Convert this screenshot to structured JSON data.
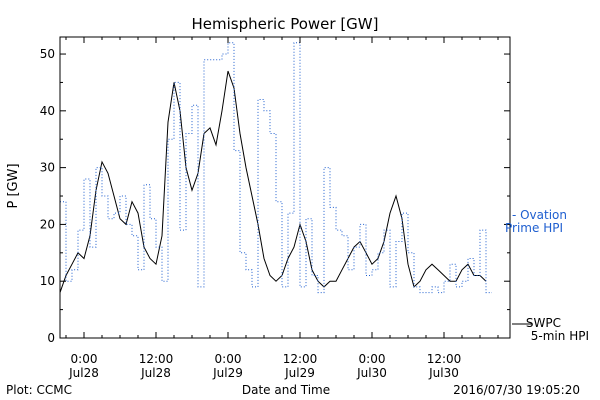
{
  "chart_data": {
    "type": "line",
    "title": "Hemispheric Power [GW]",
    "xlabel": "Date and Time",
    "ylabel": "P [GW]",
    "ylim": [
      0,
      53
    ],
    "xlim": [
      "2016-07-27T20:00",
      "2016-07-30T23:00"
    ],
    "y_ticks": [
      0,
      10,
      20,
      30,
      40,
      50
    ],
    "x_ticks": [
      {
        "top": "0:00",
        "bottom": "Jul28",
        "t": "2016-07-28T00:00"
      },
      {
        "top": "12:00",
        "bottom": "Jul28",
        "t": "2016-07-28T12:00"
      },
      {
        "top": "0:00",
        "bottom": "Jul29",
        "t": "2016-07-29T00:00"
      },
      {
        "top": "12:00",
        "bottom": "Jul29",
        "t": "2016-07-29T12:00"
      },
      {
        "top": "0:00",
        "bottom": "Jul30",
        "t": "2016-07-30T00:00"
      },
      {
        "top": "12:00",
        "bottom": "Jul30",
        "t": "2016-07-30T12:00"
      }
    ],
    "grid": false,
    "series": [
      {
        "name": "SWPC 5-min HPI",
        "legend_label_1": "SWPC",
        "legend_label_2": "5-min HPI",
        "style": "solid",
        "color": "#000000",
        "x": [
          "2016-07-27T20:00",
          "2016-07-27T21:00",
          "2016-07-27T22:00",
          "2016-07-27T23:00",
          "2016-07-28T00:00",
          "2016-07-28T01:00",
          "2016-07-28T02:00",
          "2016-07-28T03:00",
          "2016-07-28T04:00",
          "2016-07-28T05:00",
          "2016-07-28T06:00",
          "2016-07-28T07:00",
          "2016-07-28T08:00",
          "2016-07-28T09:00",
          "2016-07-28T10:00",
          "2016-07-28T11:00",
          "2016-07-28T12:00",
          "2016-07-28T13:00",
          "2016-07-28T14:00",
          "2016-07-28T15:00",
          "2016-07-28T16:00",
          "2016-07-28T17:00",
          "2016-07-28T18:00",
          "2016-07-28T19:00",
          "2016-07-28T20:00",
          "2016-07-28T21:00",
          "2016-07-28T22:00",
          "2016-07-28T23:00",
          "2016-07-29T00:00",
          "2016-07-29T01:00",
          "2016-07-29T02:00",
          "2016-07-29T03:00",
          "2016-07-29T04:00",
          "2016-07-29T05:00",
          "2016-07-29T06:00",
          "2016-07-29T07:00",
          "2016-07-29T08:00",
          "2016-07-29T09:00",
          "2016-07-29T10:00",
          "2016-07-29T11:00",
          "2016-07-29T12:00",
          "2016-07-29T13:00",
          "2016-07-29T14:00",
          "2016-07-29T15:00",
          "2016-07-29T16:00",
          "2016-07-29T17:00",
          "2016-07-29T18:00",
          "2016-07-29T19:00",
          "2016-07-29T20:00",
          "2016-07-29T21:00",
          "2016-07-29T22:00",
          "2016-07-29T23:00",
          "2016-07-30T00:00",
          "2016-07-30T01:00",
          "2016-07-30T02:00",
          "2016-07-30T03:00",
          "2016-07-30T04:00",
          "2016-07-30T05:00",
          "2016-07-30T06:00",
          "2016-07-30T07:00",
          "2016-07-30T08:00",
          "2016-07-30T09:00",
          "2016-07-30T10:00",
          "2016-07-30T11:00",
          "2016-07-30T12:00",
          "2016-07-30T13:00",
          "2016-07-30T14:00",
          "2016-07-30T15:00",
          "2016-07-30T16:00",
          "2016-07-30T17:00",
          "2016-07-30T18:00",
          "2016-07-30T19:00"
        ],
        "values": [
          8,
          11,
          13,
          15,
          14,
          18,
          26,
          31,
          29,
          25,
          21,
          20,
          24,
          22,
          16,
          14,
          13,
          18,
          38,
          45,
          40,
          30,
          26,
          29,
          36,
          37,
          34,
          40,
          47,
          44,
          36,
          30,
          25,
          20,
          14,
          11,
          10,
          11,
          14,
          16,
          20,
          17,
          12,
          10,
          9,
          10,
          10,
          12,
          14,
          16,
          17,
          15,
          13,
          14,
          17,
          22,
          25,
          21,
          13,
          9,
          10,
          12,
          13,
          12,
          11,
          10,
          10,
          12,
          13,
          11,
          11,
          10
        ]
      },
      {
        "name": "Ovation Prime HPI",
        "legend_label_1": "- Ovation",
        "legend_label_2": "Prime HPI",
        "style": "dotted",
        "color": "#1f5fd0",
        "x": [
          "2016-07-27T20:00",
          "2016-07-27T21:00",
          "2016-07-27T22:00",
          "2016-07-27T23:00",
          "2016-07-28T00:00",
          "2016-07-28T01:00",
          "2016-07-28T02:00",
          "2016-07-28T03:00",
          "2016-07-28T04:00",
          "2016-07-28T05:00",
          "2016-07-28T06:00",
          "2016-07-28T07:00",
          "2016-07-28T08:00",
          "2016-07-28T09:00",
          "2016-07-28T10:00",
          "2016-07-28T11:00",
          "2016-07-28T12:00",
          "2016-07-28T13:00",
          "2016-07-28T14:00",
          "2016-07-28T15:00",
          "2016-07-28T16:00",
          "2016-07-28T17:00",
          "2016-07-28T18:00",
          "2016-07-28T19:00",
          "2016-07-28T20:00",
          "2016-07-28T21:00",
          "2016-07-28T22:00",
          "2016-07-28T23:00",
          "2016-07-29T00:00",
          "2016-07-29T01:00",
          "2016-07-29T02:00",
          "2016-07-29T03:00",
          "2016-07-29T04:00",
          "2016-07-29T05:00",
          "2016-07-29T06:00",
          "2016-07-29T07:00",
          "2016-07-29T08:00",
          "2016-07-29T09:00",
          "2016-07-29T10:00",
          "2016-07-29T11:00",
          "2016-07-29T12:00",
          "2016-07-29T13:00",
          "2016-07-29T14:00",
          "2016-07-29T15:00",
          "2016-07-29T16:00",
          "2016-07-29T17:00",
          "2016-07-29T18:00",
          "2016-07-29T19:00",
          "2016-07-29T20:00",
          "2016-07-29T21:00",
          "2016-07-29T22:00",
          "2016-07-29T23:00",
          "2016-07-30T00:00",
          "2016-07-30T01:00",
          "2016-07-30T02:00",
          "2016-07-30T03:00",
          "2016-07-30T04:00",
          "2016-07-30T05:00",
          "2016-07-30T06:00",
          "2016-07-30T07:00",
          "2016-07-30T08:00",
          "2016-07-30T09:00",
          "2016-07-30T10:00",
          "2016-07-30T11:00",
          "2016-07-30T12:00",
          "2016-07-30T13:00",
          "2016-07-30T14:00",
          "2016-07-30T15:00",
          "2016-07-30T16:00",
          "2016-07-30T17:00",
          "2016-07-30T18:00",
          "2016-07-30T19:00"
        ],
        "values": [
          24,
          10,
          12,
          19,
          28,
          16,
          30,
          25,
          21,
          22,
          25,
          20,
          18,
          12,
          27,
          21,
          16,
          10,
          35,
          45,
          19,
          36,
          41,
          9,
          49,
          49,
          49,
          50,
          52,
          33,
          15,
          12,
          9,
          42,
          40,
          36,
          24,
          9,
          22,
          52,
          9,
          21,
          11,
          8,
          30,
          23,
          19,
          18,
          12,
          16,
          20,
          11,
          12,
          15,
          19,
          9,
          17,
          22,
          15,
          9,
          8,
          8,
          9,
          8,
          10,
          13,
          9,
          10,
          14,
          11,
          19,
          8
        ]
      }
    ]
  },
  "footer": {
    "left": "Plot: CCMC",
    "right": "2016/07/30 19:05:20"
  }
}
